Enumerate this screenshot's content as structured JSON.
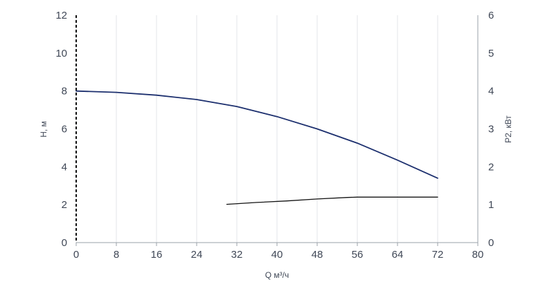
{
  "chart_data": {
    "type": "line",
    "xlabel": "Q м³/ч",
    "ylabel": "H, м",
    "y2label": "P2, кВт",
    "xlim": [
      0,
      80
    ],
    "ylim": [
      0,
      12
    ],
    "y2lim": [
      0,
      6
    ],
    "x_ticks": [
      "0",
      "8",
      "16",
      "24",
      "32",
      "40",
      "48",
      "56",
      "64",
      "72",
      "80"
    ],
    "y_ticks": [
      "0",
      "2",
      "4",
      "6",
      "8",
      "10",
      "12"
    ],
    "y2_ticks": [
      "0",
      "1",
      "2",
      "3",
      "4",
      "5",
      "6"
    ],
    "grid": "vertical",
    "series": [
      {
        "axis": "left",
        "color": "#1c2f6e",
        "x": [
          0,
          8,
          16,
          24,
          32,
          40,
          48,
          56,
          64,
          72
        ],
        "y": [
          8.0,
          7.93,
          7.78,
          7.55,
          7.18,
          6.65,
          6.0,
          5.25,
          4.35,
          3.4
        ]
      },
      {
        "axis": "right",
        "color": "#111111",
        "x": [
          30,
          36,
          42,
          48,
          54,
          56,
          60,
          66,
          72
        ],
        "y": [
          1.01,
          1.06,
          1.1,
          1.15,
          1.19,
          1.2,
          1.2,
          1.2,
          1.2
        ]
      }
    ]
  }
}
